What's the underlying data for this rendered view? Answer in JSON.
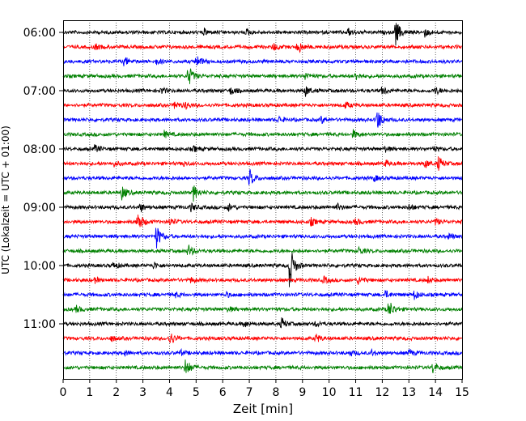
{
  "chart_data": {
    "type": "line",
    "title": "",
    "xlabel": "Zeit  [min]",
    "ylabel": "UTC (Lokalzeit = UTC + 01:00)",
    "xlim": [
      0,
      15
    ],
    "x_ticks": [
      "0",
      "1",
      "2",
      "3",
      "4",
      "5",
      "6",
      "7",
      "8",
      "9",
      "10",
      "11",
      "12",
      "13",
      "14",
      "15"
    ],
    "y_ticks": [
      "06:00",
      "07:00",
      "08:00",
      "09:00",
      "10:00",
      "11:00"
    ],
    "grid": "vertical dotted",
    "trace_start_hour": "06:00",
    "trace_interval_minutes": 15,
    "trace_colors": [
      "#000000",
      "#ff0000",
      "#0000ff",
      "#008000"
    ],
    "series": [
      {
        "start": "06:00",
        "events": [
          [
            5.3,
            0.25
          ],
          [
            6.9,
            0.2
          ],
          [
            10.7,
            0.3
          ],
          [
            12.5,
            1.0
          ],
          [
            13.6,
            0.3
          ]
        ]
      },
      {
        "start": "06:15",
        "events": [
          [
            1.2,
            0.2
          ],
          [
            7.9,
            0.3
          ],
          [
            8.8,
            0.25
          ],
          [
            8.9,
            0.2
          ]
        ]
      },
      {
        "start": "06:30",
        "events": [
          [
            2.3,
            0.35
          ],
          [
            3.5,
            0.2
          ],
          [
            5.0,
            0.5
          ]
        ]
      },
      {
        "start": "06:45",
        "events": [
          [
            4.7,
            0.9
          ],
          [
            9.1,
            0.3
          ],
          [
            11.0,
            0.3
          ]
        ]
      },
      {
        "start": "07:00",
        "events": [
          [
            3.7,
            0.25
          ],
          [
            6.3,
            0.3
          ],
          [
            9.1,
            0.4
          ],
          [
            12.0,
            0.35
          ],
          [
            14.0,
            0.3
          ]
        ]
      },
      {
        "start": "07:15",
        "events": [
          [
            4.2,
            0.3
          ],
          [
            4.6,
            0.25
          ],
          [
            10.6,
            0.25
          ]
        ]
      },
      {
        "start": "07:30",
        "events": [
          [
            8.1,
            0.25
          ],
          [
            9.7,
            0.25
          ],
          [
            11.8,
            0.9
          ]
        ]
      },
      {
        "start": "07:45",
        "events": [
          [
            3.8,
            0.25
          ],
          [
            10.9,
            0.3
          ]
        ]
      },
      {
        "start": "08:00",
        "events": [
          [
            1.2,
            0.3
          ],
          [
            4.9,
            0.2
          ],
          [
            12.1,
            0.2
          ],
          [
            13.9,
            0.2
          ]
        ]
      },
      {
        "start": "08:15",
        "events": [
          [
            1.9,
            0.2
          ],
          [
            4.5,
            0.2
          ],
          [
            12.1,
            0.25
          ],
          [
            13.6,
            0.3
          ],
          [
            14.1,
            0.55
          ]
        ]
      },
      {
        "start": "08:30",
        "events": [
          [
            7.0,
            0.7
          ],
          [
            11.7,
            0.2
          ]
        ]
      },
      {
        "start": "08:45",
        "events": [
          [
            2.2,
            0.55
          ],
          [
            4.9,
            0.6
          ]
        ]
      },
      {
        "start": "09:00",
        "events": [
          [
            2.9,
            0.3
          ],
          [
            4.8,
            0.3
          ],
          [
            6.2,
            0.3
          ],
          [
            10.3,
            0.25
          ],
          [
            13.0,
            0.25
          ]
        ]
      },
      {
        "start": "09:15",
        "events": [
          [
            2.8,
            0.9
          ],
          [
            4.0,
            0.3
          ],
          [
            9.3,
            0.3
          ],
          [
            11.0,
            0.25
          ],
          [
            14.0,
            0.25
          ]
        ]
      },
      {
        "start": "09:30",
        "events": [
          [
            3.5,
            0.95
          ],
          [
            14.5,
            0.2
          ]
        ]
      },
      {
        "start": "09:45",
        "events": [
          [
            4.7,
            0.5
          ],
          [
            11.1,
            0.3
          ]
        ]
      },
      {
        "start": "10:00",
        "events": [
          [
            1.9,
            0.25
          ],
          [
            3.4,
            0.25
          ],
          [
            8.5,
            1.9
          ]
        ]
      },
      {
        "start": "10:15",
        "events": [
          [
            1.2,
            0.2
          ],
          [
            4.8,
            0.2
          ],
          [
            9.8,
            0.25
          ],
          [
            11.1,
            0.3
          ],
          [
            13.7,
            0.25
          ]
        ]
      },
      {
        "start": "10:30",
        "events": [
          [
            4.2,
            0.2
          ],
          [
            6.1,
            0.2
          ],
          [
            12.1,
            0.3
          ],
          [
            13.2,
            0.35
          ]
        ]
      },
      {
        "start": "10:45",
        "events": [
          [
            0.5,
            0.25
          ],
          [
            6.2,
            0.2
          ],
          [
            12.2,
            0.4
          ],
          [
            12.3,
            0.3
          ]
        ]
      },
      {
        "start": "11:00",
        "events": [
          [
            6.8,
            0.25
          ],
          [
            8.2,
            0.45
          ],
          [
            9.5,
            0.2
          ]
        ]
      },
      {
        "start": "11:15",
        "events": [
          [
            1.8,
            0.2
          ],
          [
            4.0,
            0.6
          ],
          [
            9.5,
            0.35
          ]
        ]
      },
      {
        "start": "11:30",
        "events": [
          [
            2.3,
            0.2
          ],
          [
            4.4,
            0.2
          ],
          [
            10.8,
            0.2
          ],
          [
            11.6,
            0.2
          ],
          [
            13.0,
            0.25
          ]
        ]
      },
      {
        "start": "11:45",
        "events": [
          [
            4.6,
            0.75
          ],
          [
            13.9,
            0.4
          ]
        ]
      }
    ]
  }
}
